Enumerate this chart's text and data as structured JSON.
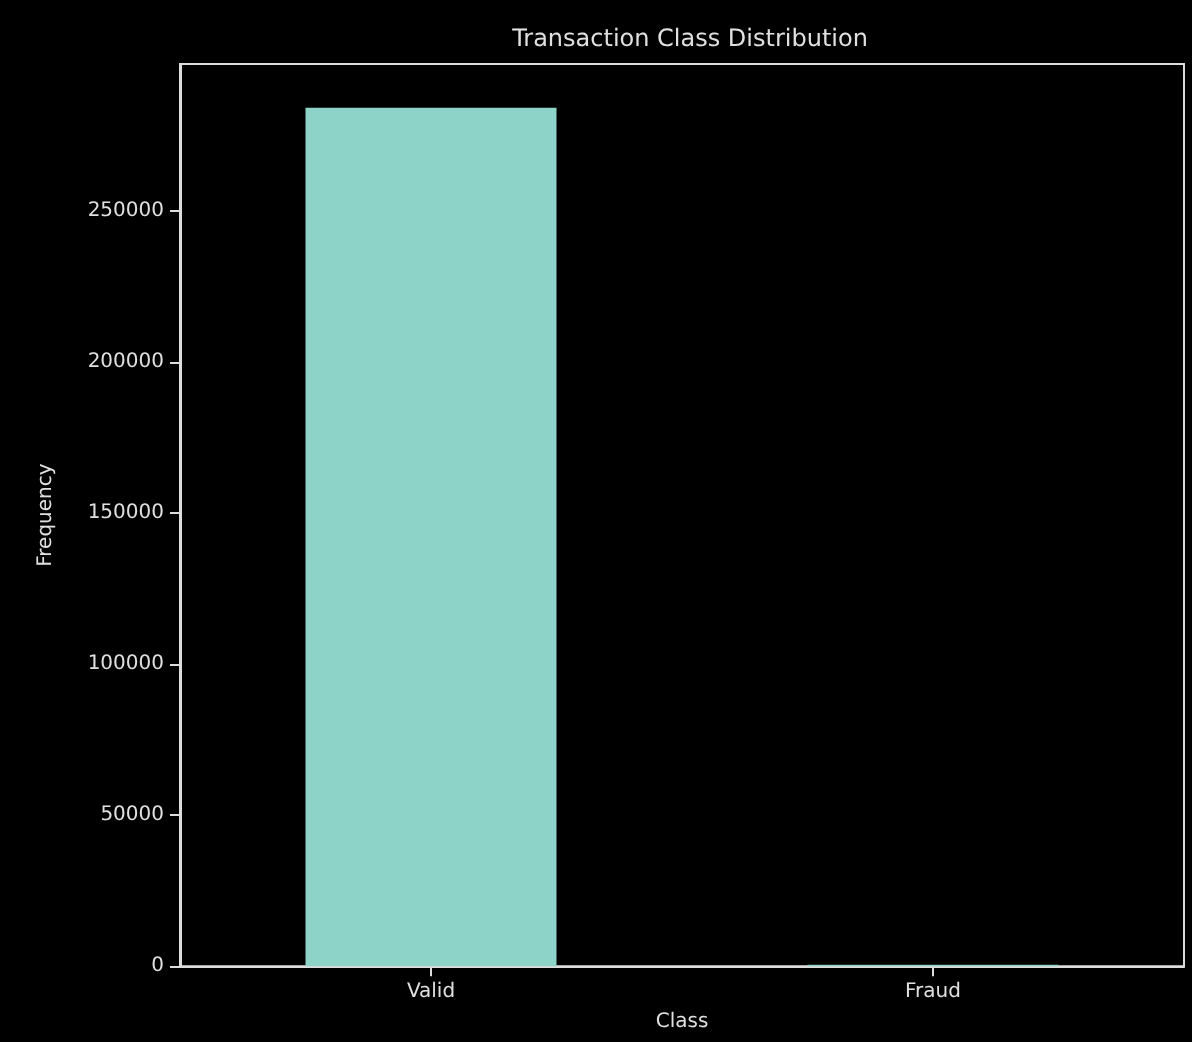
{
  "chart_data": {
    "type": "bar",
    "title": "Transaction Class Distribution",
    "xlabel": "Class",
    "ylabel": "Frequency",
    "categories": [
      "Valid",
      "Fraud"
    ],
    "values": [
      284000,
      500
    ],
    "color": "#8dd3c7",
    "ylim": [
      0,
      298500
    ],
    "yticks": [
      0,
      50000,
      100000,
      150000,
      200000,
      250000
    ],
    "grid": false
  }
}
